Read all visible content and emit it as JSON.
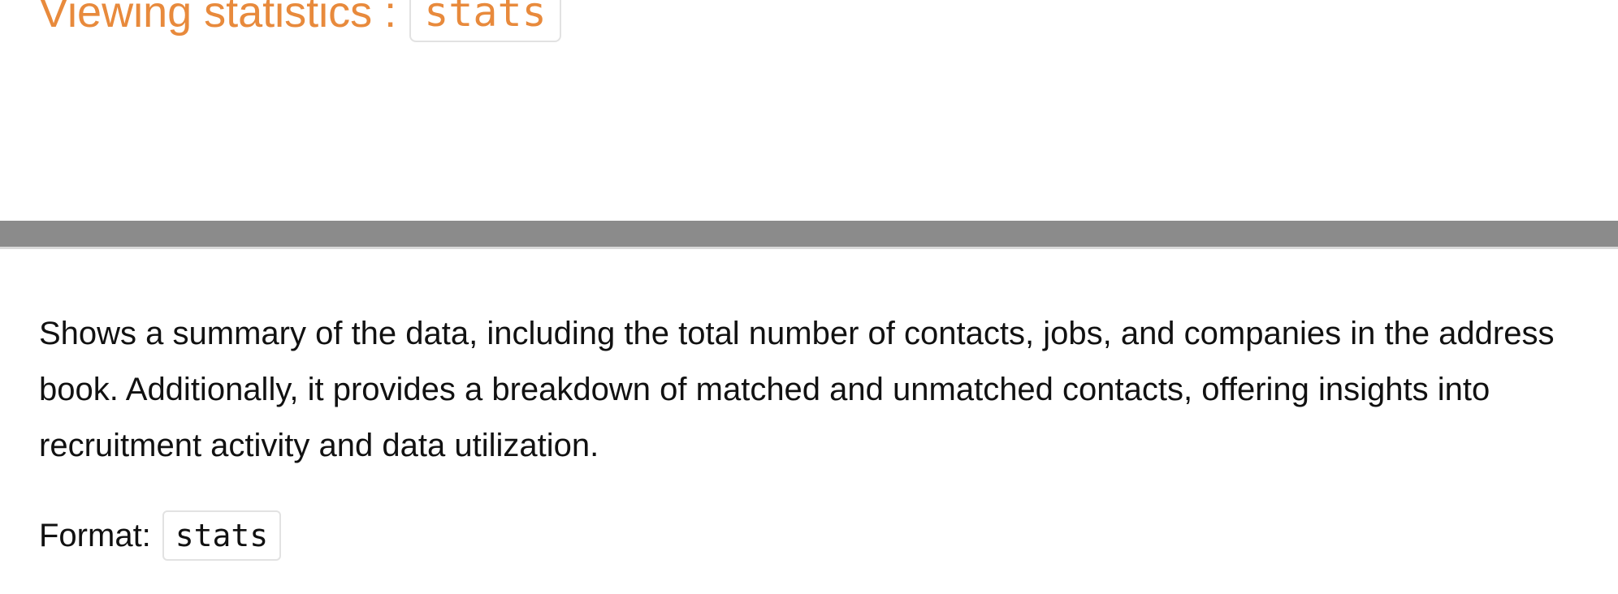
{
  "heading": {
    "prefix": "Viewing statistics :",
    "command": "stats"
  },
  "description": "Shows a summary of the data, including the total number of contacts, jobs, and companies in the address book. Additionally, it provides a breakdown of matched and unmatched contacts, offering insights into recruitment activity and data utilization.",
  "format": {
    "label": "Format:",
    "command": "stats"
  },
  "colors": {
    "heading": "#e88a3c",
    "divider": "#8b8b8b"
  }
}
